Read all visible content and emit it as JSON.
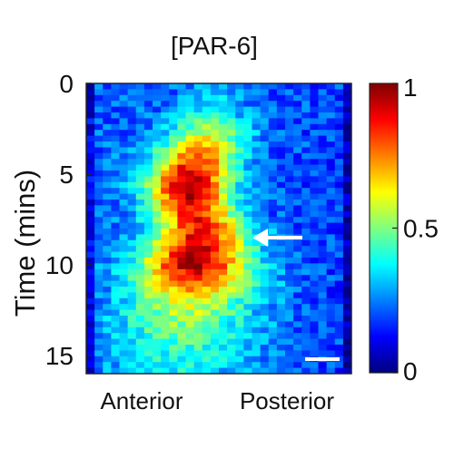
{
  "chart_data": {
    "type": "heatmap",
    "title": "[PAR-6]",
    "xlabel": "",
    "ylabel": "Time (mins)",
    "x_tick_labels": [
      "Anterior",
      "Posterior"
    ],
    "y_ticks": [
      0,
      5,
      10,
      15
    ],
    "ylim": [
      0,
      16
    ],
    "colorbar": {
      "ticks": [
        0,
        0.5,
        1
      ],
      "tick_labels": [
        "0",
        "0.5",
        "1"
      ],
      "range": [
        0,
        1
      ],
      "colormap": "jet"
    },
    "annotations": [
      {
        "type": "arrow",
        "points_to": "left",
        "time_min": 8.5
      },
      {
        "type": "scale-bar",
        "color": "#ffffff"
      }
    ],
    "grid": false,
    "legend": "none",
    "n_x_bins": 32,
    "rows": [
      {
        "time_min": 0.0,
        "peak_bin": 14.5,
        "width_bins": 3.0,
        "peak_value": 0.25
      },
      {
        "time_min": 1.0,
        "peak_bin": 14.5,
        "width_bins": 4.0,
        "peak_value": 0.35
      },
      {
        "time_min": 2.0,
        "peak_bin": 14.2,
        "width_bins": 4.5,
        "peak_value": 0.45
      },
      {
        "time_min": 3.0,
        "peak_bin": 13.8,
        "width_bins": 5.0,
        "peak_value": 0.6
      },
      {
        "time_min": 4.0,
        "peak_bin": 12.8,
        "width_bins": 5.0,
        "peak_value": 0.8
      },
      {
        "time_min": 5.0,
        "peak_bin": 12.0,
        "width_bins": 5.0,
        "peak_value": 0.92
      },
      {
        "time_min": 6.0,
        "peak_bin": 11.8,
        "width_bins": 5.0,
        "peak_value": 0.95
      },
      {
        "time_min": 7.0,
        "peak_bin": 12.3,
        "width_bins": 5.0,
        "peak_value": 0.88
      },
      {
        "time_min": 8.0,
        "peak_bin": 13.2,
        "width_bins": 5.5,
        "peak_value": 0.85
      },
      {
        "time_min": 9.0,
        "peak_bin": 13.0,
        "width_bins": 6.0,
        "peak_value": 0.92
      },
      {
        "time_min": 10.0,
        "peak_bin": 12.5,
        "width_bins": 6.5,
        "peak_value": 0.96
      },
      {
        "time_min": 11.0,
        "peak_bin": 12.5,
        "width_bins": 7.0,
        "peak_value": 0.8
      },
      {
        "time_min": 12.0,
        "peak_bin": 12.0,
        "width_bins": 7.5,
        "peak_value": 0.6
      },
      {
        "time_min": 13.0,
        "peak_bin": 11.5,
        "width_bins": 8.0,
        "peak_value": 0.52
      },
      {
        "time_min": 14.0,
        "peak_bin": 11.0,
        "width_bins": 8.5,
        "peak_value": 0.45
      },
      {
        "time_min": 15.0,
        "peak_bin": 10.5,
        "width_bins": 9.0,
        "peak_value": 0.4
      },
      {
        "time_min": 16.0,
        "peak_bin": 10.5,
        "width_bins": 9.0,
        "peak_value": 0.36
      }
    ],
    "background_value": 0.22
  }
}
